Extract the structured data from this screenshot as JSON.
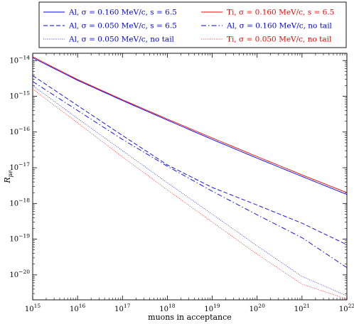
{
  "chart_data": {
    "type": "line",
    "xlabel": "muons in acceptance",
    "ylabel": "R_{μe}",
    "xscale": "log",
    "yscale": "log",
    "xlim": [
      1000000000000000.0,
      1e+22
    ],
    "ylim": [
      2e-21,
      1.6e-14
    ],
    "grid": false,
    "legend_placement": "top, two columns",
    "x_ticks": [
      {
        "value": 1000000000000000.0,
        "base": "10",
        "exp": "15"
      },
      {
        "value": 1e+16,
        "base": "10",
        "exp": "16"
      },
      {
        "value": 1e+17,
        "base": "10",
        "exp": "17"
      },
      {
        "value": 1e+18,
        "base": "10",
        "exp": "18"
      },
      {
        "value": 1e+19,
        "base": "10",
        "exp": "19"
      },
      {
        "value": 1e+20,
        "base": "10",
        "exp": "20"
      },
      {
        "value": 1e+21,
        "base": "10",
        "exp": "21"
      },
      {
        "value": 1e+22,
        "base": "10",
        "exp": "22"
      }
    ],
    "y_ticks": [
      {
        "value": 1e-14,
        "base": "10",
        "exp": "−14"
      },
      {
        "value": 1e-15,
        "base": "10",
        "exp": "−15"
      },
      {
        "value": 1e-16,
        "base": "10",
        "exp": "−16"
      },
      {
        "value": 1e-17,
        "base": "10",
        "exp": "−17"
      },
      {
        "value": 1e-18,
        "base": "10",
        "exp": "−18"
      },
      {
        "value": 1e-19,
        "base": "10",
        "exp": "−19"
      },
      {
        "value": 1e-20,
        "base": "10",
        "exp": "−20"
      }
    ],
    "x": [
      1000000000000000.0,
      1e+16,
      1e+17,
      1e+18,
      1e+19,
      1e+20,
      1e+21,
      1e+22
    ],
    "series": [
      {
        "name": "Al, σ = 0.160 MeV/c, s = 6.5",
        "color": "#0000ff",
        "dash": "solid",
        "values": [
          1.2e-14,
          2.8e-15,
          7.6e-16,
          2.15e-16,
          6.2e-17,
          1.85e-17,
          5.7e-18,
          1.78e-18
        ]
      },
      {
        "name": "Ti, σ = 0.160 MeV/c, s = 6.5",
        "color": "#ff0000",
        "dash": "solid",
        "values": [
          1.28e-14,
          2.95e-15,
          8e-16,
          2.3e-16,
          6.8e-17,
          2.05e-17,
          6.3e-18,
          2e-18
        ]
      },
      {
        "name": "Al, σ = 0.050 MeV/c, s = 6.5",
        "color": "#0000ff",
        "dash": "dashed",
        "values": [
          3.8e-15,
          5.5e-16,
          8e-17,
          1.2e-17,
          2.8e-18,
          9e-19,
          2.8e-19,
          7e-20
        ]
      },
      {
        "name": "Al, σ = 0.160 MeV/c, no tail",
        "color": "#0000ff",
        "dash": "dashdot",
        "values": [
          2.6e-15,
          4e-16,
          6.2e-17,
          1.1e-17,
          2.2e-18,
          4.8e-19,
          1.1e-19,
          1.6e-20
        ]
      },
      {
        "name": "Al, σ = 0.050 MeV/c, no tail",
        "color": "#0000ff",
        "dash": "dotted",
        "values": [
          2e-15,
          2.4e-16,
          3e-17,
          3.8e-18,
          5e-19,
          6.5e-20,
          9e-21,
          2.6e-21
        ]
      },
      {
        "name": "Ti, σ = 0.050 MeV/c, no tail",
        "color": "#ff0000",
        "dash": "dotted",
        "values": [
          1.6e-15,
          1.8e-16,
          2e-17,
          2.4e-18,
          3e-19,
          3.8e-20,
          5.5e-21,
          2.1e-21
        ]
      }
    ],
    "legend": [
      [
        {
          "label": "Al, σ = 0.160 MeV/c, s = 6.5",
          "color": "#0000ff",
          "dash": "solid"
        },
        {
          "label": "Al, σ = 0.050 MeV/c, s = 6.5",
          "color": "#0000ff",
          "dash": "dashed"
        },
        {
          "label": "Al, σ = 0.050 MeV/c, no tail",
          "color": "#0000ff",
          "dash": "dotted"
        }
      ],
      [
        {
          "label": "Ti, σ = 0.160 MeV/c, s = 6.5",
          "color": "#ff0000",
          "dash": "solid"
        },
        {
          "label": "Al, σ = 0.160 MeV/c, no tail",
          "color": "#0000ff",
          "dash": "dashdot"
        },
        {
          "label": "Ti, σ = 0.050 MeV/c, no tail",
          "color": "#ff0000",
          "dash": "dotted"
        }
      ]
    ]
  }
}
